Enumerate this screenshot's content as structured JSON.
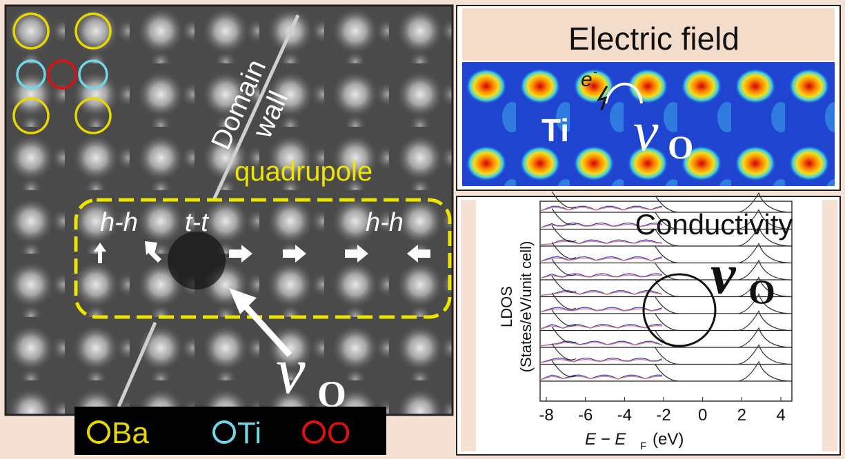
{
  "stem_panel": {
    "wall_label": [
      "Domain",
      "wall"
    ],
    "quadrupole": "quadrupole",
    "walls": [
      "h-h",
      "t-t",
      "h-h"
    ],
    "vacancy": {
      "symbol": "v",
      "sub": "O"
    },
    "legend": [
      "Ba",
      "Ti",
      "O"
    ]
  },
  "field_panel": {
    "title": "Electric field",
    "electron": {
      "symbol": "e",
      "sup": "-"
    },
    "ion": "Ti",
    "vacancy": {
      "symbol": "v",
      "sub": "O"
    }
  },
  "ldos_panel": {
    "title": "Conductivity",
    "vacancy": {
      "symbol": "v",
      "sub": "O"
    },
    "ylabel": [
      "LDOS",
      "(States/eV/unit cell)"
    ],
    "xlabel": {
      "main": "E − E",
      "sub": "F",
      "unit": "(eV)"
    },
    "xticks": [
      -8,
      -6,
      -4,
      -2,
      0,
      2,
      4
    ]
  }
}
